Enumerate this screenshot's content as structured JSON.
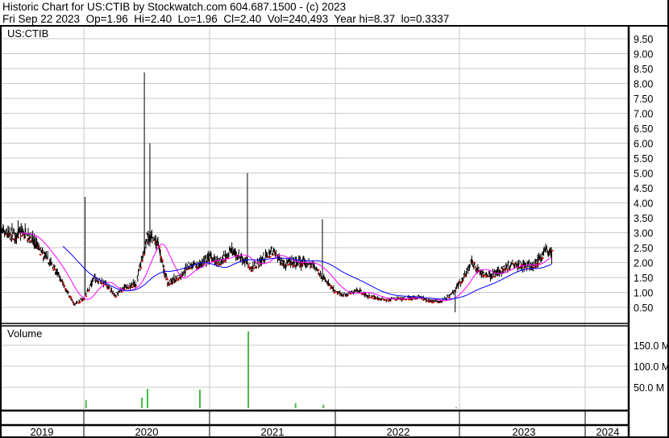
{
  "header": {
    "title": "Historic Chart for US:CTIB by Stockwatch.com 604.687.1500 - (c) 2023",
    "quote": "Fri Sep 22 2023  Op=1.96  Hi=2.40  Lo=1.96  Cl=2.40  Vol=240,493  Year hi=8.37  lo=0.3337"
  },
  "chart_data": {
    "type": "line",
    "symbol": "US:CTIB",
    "price_axis": {
      "ticks": [
        "0.50",
        "1.00",
        "1.50",
        "2.00",
        "2.50",
        "3.00",
        "3.50",
        "4.00",
        "4.50",
        "5.00",
        "5.50",
        "6.00",
        "6.50",
        "7.00",
        "7.50",
        "8.00",
        "8.50",
        "9.00",
        "9.50"
      ],
      "range": [
        0,
        9.9
      ],
      "grid": true
    },
    "volume_panel": {
      "label": "Volume",
      "ticks": [
        "50.0 M",
        "100.0 M",
        "150.0 M"
      ],
      "range": [
        0,
        200
      ]
    },
    "year_labels": [
      "2019",
      "2020",
      "2021",
      "2022",
      "2023",
      "2024"
    ],
    "x_range": [
      "2019-05",
      "2024-05"
    ],
    "colors": {
      "price": "#000000",
      "down_tick": "#ff0000",
      "ma_short": "#ff00ff",
      "ma_long": "#0000ff",
      "volume": "#4db848"
    },
    "monthly_close": {
      "dates": [
        "2019-05",
        "2019-06",
        "2019-07",
        "2019-08",
        "2019-09",
        "2019-10",
        "2019-11",
        "2019-12",
        "2020-01",
        "2020-02",
        "2020-03",
        "2020-04",
        "2020-05",
        "2020-06",
        "2020-07",
        "2020-08",
        "2020-09",
        "2020-10",
        "2020-11",
        "2020-12",
        "2021-01",
        "2021-02",
        "2021-03",
        "2021-04",
        "2021-05",
        "2021-06",
        "2021-07",
        "2021-08",
        "2021-09",
        "2021-10",
        "2021-11",
        "2021-12",
        "2022-01",
        "2022-02",
        "2022-03",
        "2022-04",
        "2022-05",
        "2022-06",
        "2022-07",
        "2022-08",
        "2022-09",
        "2022-10",
        "2022-11",
        "2022-12",
        "2023-01",
        "2023-02",
        "2023-03",
        "2023-04",
        "2023-05",
        "2023-06",
        "2023-07",
        "2023-08",
        "2023-09"
      ],
      "values": [
        3.0,
        2.9,
        3.0,
        2.8,
        2.3,
        1.9,
        1.3,
        0.6,
        0.8,
        1.5,
        1.3,
        0.9,
        1.2,
        1.3,
        2.8,
        2.7,
        1.3,
        1.5,
        1.9,
        1.9,
        2.2,
        2.0,
        2.4,
        2.2,
        1.8,
        2.1,
        2.4,
        2.0,
        2.0,
        2.0,
        1.9,
        1.4,
        1.0,
        0.9,
        1.1,
        0.9,
        0.8,
        0.75,
        0.8,
        0.8,
        0.85,
        0.7,
        0.7,
        0.9,
        1.4,
        2.0,
        1.6,
        1.6,
        1.8,
        2.0,
        1.9,
        1.9,
        2.4
      ]
    },
    "spikes": [
      {
        "date": "2020-01-05",
        "high": 4.2
      },
      {
        "date": "2020-06-25",
        "high": 8.37
      },
      {
        "date": "2020-07-10",
        "high": 6.0
      },
      {
        "date": "2021-04-20",
        "high": 5.0
      },
      {
        "date": "2021-11-25",
        "high": 3.45
      },
      {
        "date": "2022-12-15",
        "low": 0.3337
      }
    ],
    "volume_spikes_m": [
      {
        "date": "2020-01-05",
        "value": 19
      },
      {
        "date": "2020-06-15",
        "value": 25
      },
      {
        "date": "2020-07-01",
        "value": 46
      },
      {
        "date": "2020-12-01",
        "value": 44
      },
      {
        "date": "2021-04-20",
        "value": 183
      },
      {
        "date": "2021-09-05",
        "value": 12
      },
      {
        "date": "2021-11-25",
        "value": 8
      },
      {
        "date": "2022-12-15",
        "value": 2
      }
    ]
  }
}
